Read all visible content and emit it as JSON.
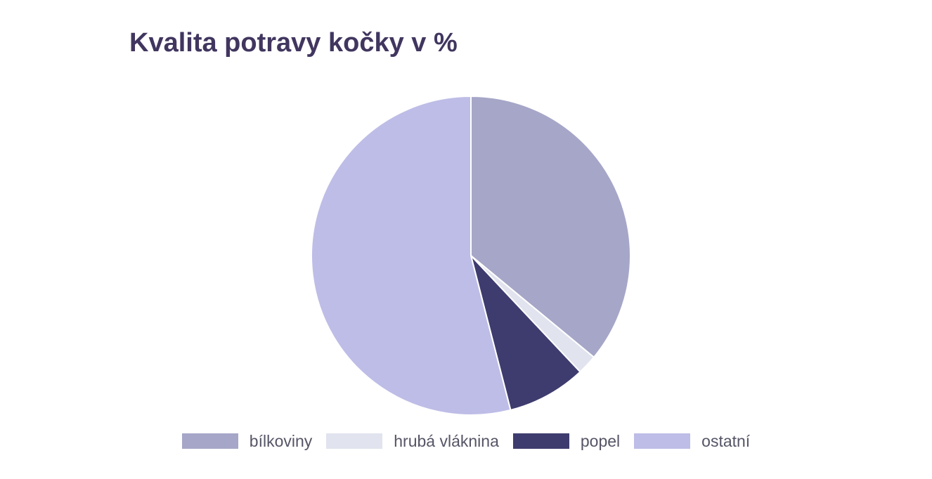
{
  "chart_data": {
    "type": "pie",
    "title": "Kvalita potravy kočky v %",
    "categories": [
      "bílkoviny",
      "hrubá vláknina",
      "popel",
      "ostatní"
    ],
    "values": [
      36,
      2,
      8,
      54
    ],
    "colors": [
      "#a6a6c8",
      "#e1e3ee",
      "#3e3c6e",
      "#bebde7"
    ],
    "legend_position": "bottom"
  }
}
